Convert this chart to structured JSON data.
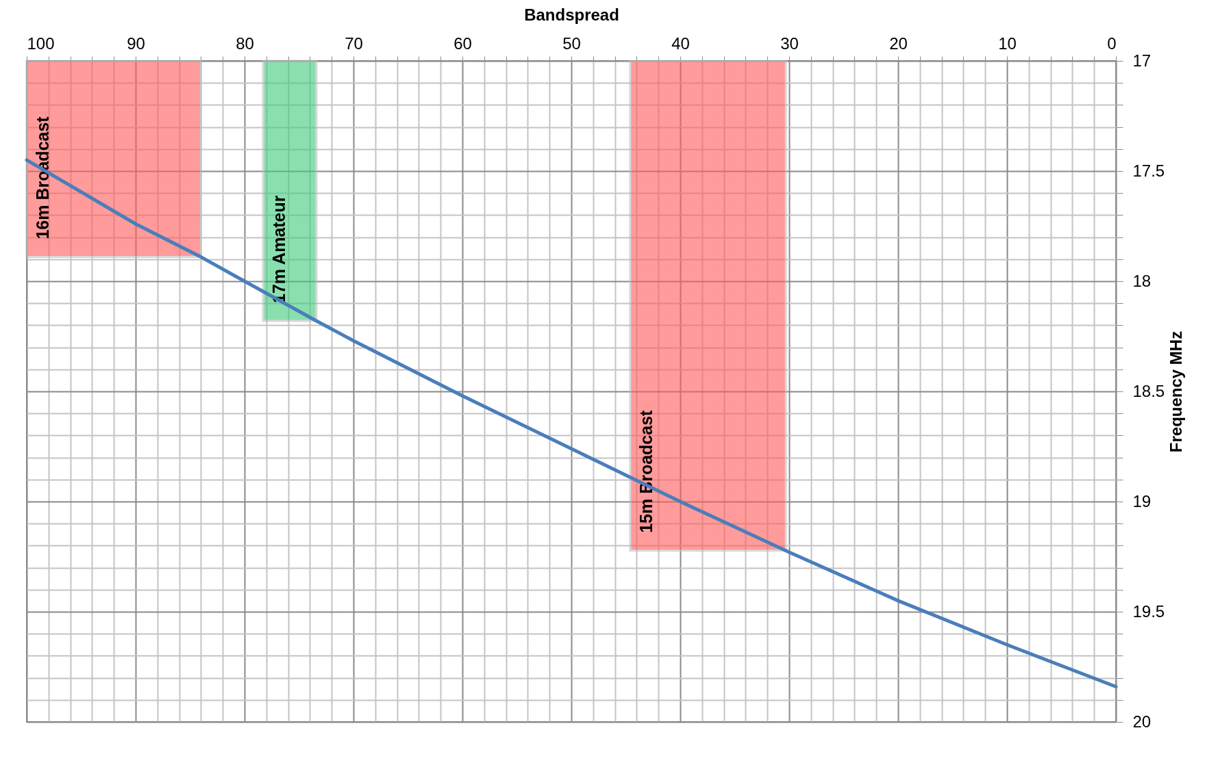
{
  "chart_data": {
    "type": "line",
    "xlabel": "Bandspread",
    "ylabel": "Frequency MHz",
    "x": [
      100,
      90,
      84,
      80,
      73.4,
      70,
      60,
      50,
      40,
      30,
      20,
      10,
      0
    ],
    "series": [
      {
        "color": "#4a7ebb",
        "values": [
          17.45,
          17.74,
          17.89,
          18.0,
          18.18,
          18.27,
          18.52,
          18.76,
          19.0,
          19.23,
          19.45,
          19.65,
          19.84
        ]
      }
    ],
    "xlim": [
      100,
      0
    ],
    "xticks": [
      0,
      {
        "value": 2,
        "label": null
      },
      {
        "value": 4,
        "label": null
      },
      {
        "value": 6,
        "label": null
      },
      {
        "value": 8,
        "label": null
      },
      10,
      {
        "value": 12,
        "label": null
      },
      {
        "value": 14,
        "label": null
      },
      {
        "value": 16,
        "label": null
      },
      {
        "value": 18,
        "label": null
      },
      20,
      {
        "value": 22,
        "label": null
      },
      {
        "value": 24,
        "label": null
      },
      {
        "value": 26,
        "label": null
      },
      {
        "value": 28,
        "label": null
      },
      30,
      {
        "value": 32,
        "label": null
      },
      {
        "value": 34,
        "label": null
      },
      {
        "value": 36,
        "label": null
      },
      {
        "value": 38,
        "label": null
      },
      40,
      {
        "value": 42,
        "label": null
      },
      {
        "value": 44,
        "label": null
      },
      {
        "value": 46,
        "label": null
      },
      {
        "value": 48,
        "label": null
      },
      50,
      {
        "value": 52,
        "label": null
      },
      {
        "value": 54,
        "label": null
      },
      {
        "value": 56,
        "label": null
      },
      {
        "value": 58,
        "label": null
      },
      60,
      {
        "value": 62,
        "label": null
      },
      {
        "value": 64,
        "label": null
      },
      {
        "value": 66,
        "label": null
      },
      {
        "value": 68,
        "label": null
      },
      70,
      {
        "value": 72,
        "label": null
      },
      {
        "value": 74,
        "label": null
      },
      {
        "value": 76,
        "label": null
      },
      {
        "value": 78,
        "label": null
      },
      80,
      {
        "value": 82,
        "label": null
      },
      {
        "value": 84,
        "label": null
      },
      {
        "value": 86,
        "label": null
      },
      {
        "value": 88,
        "label": null
      },
      90,
      {
        "value": 92,
        "label": null
      },
      {
        "value": 94,
        "label": null
      },
      {
        "value": 96,
        "label": null
      },
      {
        "value": 98,
        "label": null
      },
      100
    ],
    "ylim": [
      20,
      17
    ],
    "yticks": [
      17,
      {
        "value": 17.1,
        "label": null
      },
      {
        "value": 17.2,
        "label": null
      },
      {
        "value": 17.3,
        "label": null
      },
      {
        "value": 17.4,
        "label": null
      },
      17.5,
      {
        "value": 17.6,
        "label": null
      },
      {
        "value": 17.7,
        "label": null
      },
      {
        "value": 17.8,
        "label": null
      },
      {
        "value": 17.9,
        "label": null
      },
      18,
      {
        "value": 18.1,
        "label": null
      },
      {
        "value": 18.2,
        "label": null
      },
      {
        "value": 18.3,
        "label": null
      },
      {
        "value": 18.4,
        "label": null
      },
      18.5,
      {
        "value": 18.6,
        "label": null
      },
      {
        "value": 18.7,
        "label": null
      },
      {
        "value": 18.8,
        "label": null
      },
      {
        "value": 18.9,
        "label": null
      },
      19,
      {
        "value": 19.1,
        "label": null
      },
      {
        "value": 19.2,
        "label": null
      },
      {
        "value": 19.3,
        "label": null
      },
      {
        "value": 19.4,
        "label": null
      },
      19.5,
      {
        "value": 19.6,
        "label": null
      },
      {
        "value": 19.7,
        "label": null
      },
      {
        "value": 19.8,
        "label": null
      },
      {
        "value": 19.9,
        "label": null
      },
      20
    ],
    "grid": true,
    "bands": [
      {
        "axis": "x",
        "from": 100,
        "to": 84,
        "label": "16m Broadcast",
        "color": "#ff5a5a"
      },
      {
        "axis": "x",
        "from": 78.3,
        "to": 73.4,
        "label": "17m Amateur",
        "color": "#3ccb7a"
      },
      {
        "axis": "x",
        "from": 44.6,
        "to": 30.3,
        "label": "15m Broadcast",
        "color": "#ff5a5a"
      }
    ]
  }
}
